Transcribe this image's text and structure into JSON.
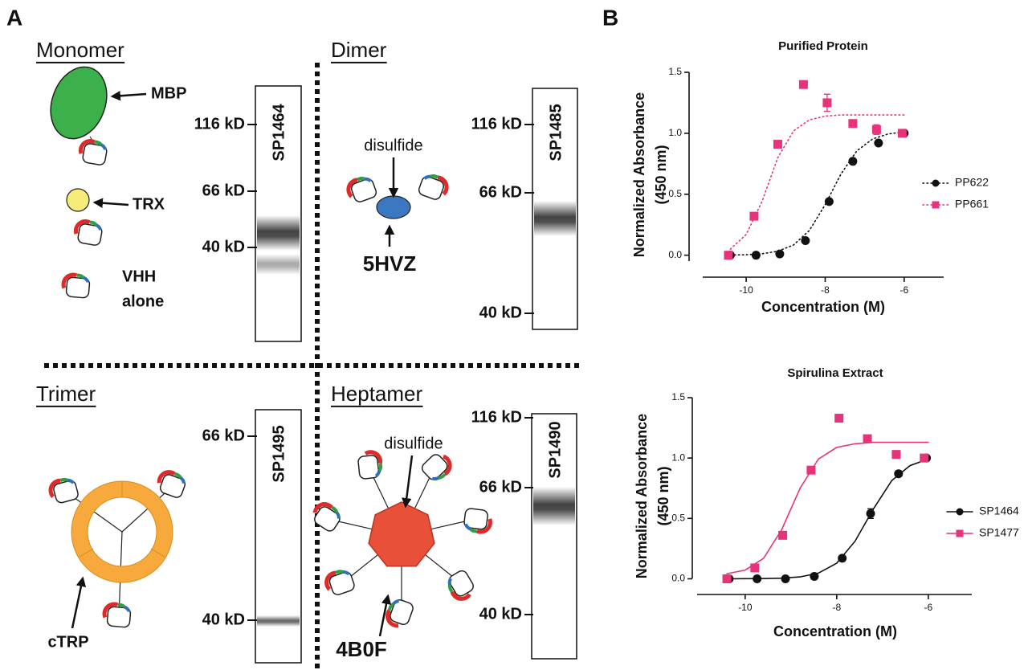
{
  "panel_labels": [
    "A",
    "B"
  ],
  "panel_a": {
    "monomer": {
      "title": "Monomer",
      "annotations": [
        "MBP",
        "TRX"
      ],
      "vhh_alone": [
        "VHH",
        "alone"
      ],
      "gel": {
        "lane": "SP1464",
        "markers": [
          "116 kD",
          "66 kD",
          "40 kD"
        ]
      }
    },
    "dimer": {
      "title": "Dimer",
      "annotations": [
        "disulfide",
        "5HVZ"
      ],
      "gel": {
        "lane": "SP1485",
        "markers": [
          "116 kD",
          "66 kD",
          "40 kD"
        ]
      }
    },
    "trimer": {
      "title": "Trimer",
      "annotations": [
        "cTRP"
      ],
      "gel": {
        "lane": "SP1495",
        "markers": [
          "66 kD",
          "40 kD"
        ]
      }
    },
    "heptamer": {
      "title": "Heptamer",
      "annotations": [
        "disulfide",
        "4B0F"
      ],
      "gel": {
        "lane": "SP1490",
        "markers": [
          "116 kD",
          "66 kD",
          "40 kD"
        ]
      }
    }
  },
  "chart_data": [
    {
      "type": "scatter",
      "title": "Purified Protein",
      "xlabel": "Concentration (M)",
      "ylabel_lines": [
        "Normalized Absorbance",
        "(450 nm)"
      ],
      "xlim": [
        -11.1,
        -5.0
      ],
      "xticks": [
        -10,
        -8,
        -6
      ],
      "ylim": [
        -0.18,
        1.5
      ],
      "yticks": [
        {
          "value": 0,
          "label": "0.0"
        },
        0.5,
        {
          "value": 1,
          "label": "1.0"
        },
        1.5
      ],
      "legend": "right",
      "line_style": "dotted",
      "series": [
        {
          "name": "PP622",
          "color": "#111111",
          "marker": "circle",
          "x": [
            -10.4,
            -9.75,
            -9.15,
            -8.5,
            -7.9,
            -7.3,
            -6.65,
            -6.0
          ],
          "values": [
            0.0,
            0.0,
            0.01,
            0.12,
            0.44,
            0.77,
            0.92,
            1.0
          ],
          "curve_x": [
            -10.4,
            -10,
            -9.6,
            -9.2,
            -8.8,
            -8.4,
            -8,
            -7.6,
            -7.2,
            -6.8,
            -6.4,
            -6.0
          ],
          "curve_values": [
            0.002,
            0.004,
            0.012,
            0.032,
            0.084,
            0.203,
            0.415,
            0.666,
            0.855,
            0.953,
            0.995,
            1.011
          ]
        },
        {
          "name": "PP661",
          "color": "#e6337c",
          "marker": "square",
          "x": [
            -10.45,
            -9.8,
            -9.2,
            -8.55,
            -7.95,
            -7.3,
            -6.7,
            -6.05
          ],
          "values": [
            0.0,
            0.32,
            0.91,
            1.4,
            1.25,
            1.08,
            1.03,
            1.0
          ],
          "errors": [
            null,
            0.02,
            0.03,
            0.03,
            0.07,
            0.02,
            0.04,
            null
          ],
          "curve_x": [
            -10.4,
            -10,
            -9.6,
            -9.2,
            -8.8,
            -8.4,
            -8,
            -7.6,
            -7.2,
            -6.8,
            -6.4,
            -6.0
          ],
          "curve_values": [
            0.05,
            0.17,
            0.44,
            0.8,
            1.02,
            1.11,
            1.14,
            1.15,
            1.15,
            1.15,
            1.15,
            1.15
          ]
        }
      ]
    },
    {
      "type": "scatter",
      "title": "Spirulina Extract",
      "xlabel": "Concentration (M)",
      "ylabel_lines": [
        "Normalized Absorbance",
        "(450 nm)"
      ],
      "xlim": [
        -11.05,
        -5.05
      ],
      "xticks": [
        -10,
        -8,
        -6
      ],
      "ylim": [
        -0.13,
        1.5
      ],
      "yticks": [
        {
          "value": 0,
          "label": "0.0"
        },
        0.5,
        {
          "value": 1,
          "label": "1.0"
        },
        1.5
      ],
      "legend": "right",
      "line_style": "solid",
      "series": [
        {
          "name": "SP1464",
          "color": "#111111",
          "marker": "circle",
          "x": [
            -10.35,
            -9.74,
            -9.12,
            -8.49,
            -7.88,
            -7.26,
            -6.65,
            -6.04
          ],
          "values": [
            0.0,
            0.0,
            0.0,
            0.02,
            0.17,
            0.54,
            0.87,
            1.0
          ],
          "errors": [
            null,
            null,
            null,
            null,
            null,
            0.04,
            0.02,
            null
          ],
          "curve_x": [
            -10.4,
            -10,
            -9.6,
            -9.2,
            -8.8,
            -8.4,
            -8,
            -7.6,
            -7.2,
            -6.8,
            -6.4,
            -6.0
          ],
          "curve_values": [
            0.0,
            0.001,
            0.002,
            0.005,
            0.016,
            0.047,
            0.129,
            0.312,
            0.578,
            0.813,
            0.937,
            0.992
          ]
        },
        {
          "name": "SP1477",
          "color": "#e6337c",
          "marker": "square",
          "x": [
            -10.4,
            -9.79,
            -9.18,
            -8.56,
            -7.95,
            -7.33,
            -6.7,
            -6.09
          ],
          "values": [
            0.0,
            0.09,
            0.36,
            0.9,
            1.33,
            1.16,
            1.03,
            1.0
          ],
          "curve_x": [
            -10.4,
            -10,
            -9.6,
            -9.2,
            -8.8,
            -8.4,
            -8,
            -7.6,
            -7.2,
            -6.8,
            -6.4,
            -6.0
          ],
          "curve_values": [
            0.042,
            0.072,
            0.169,
            0.409,
            0.751,
            0.991,
            1.088,
            1.118,
            1.13,
            1.13,
            1.13,
            1.13
          ]
        }
      ]
    }
  ]
}
